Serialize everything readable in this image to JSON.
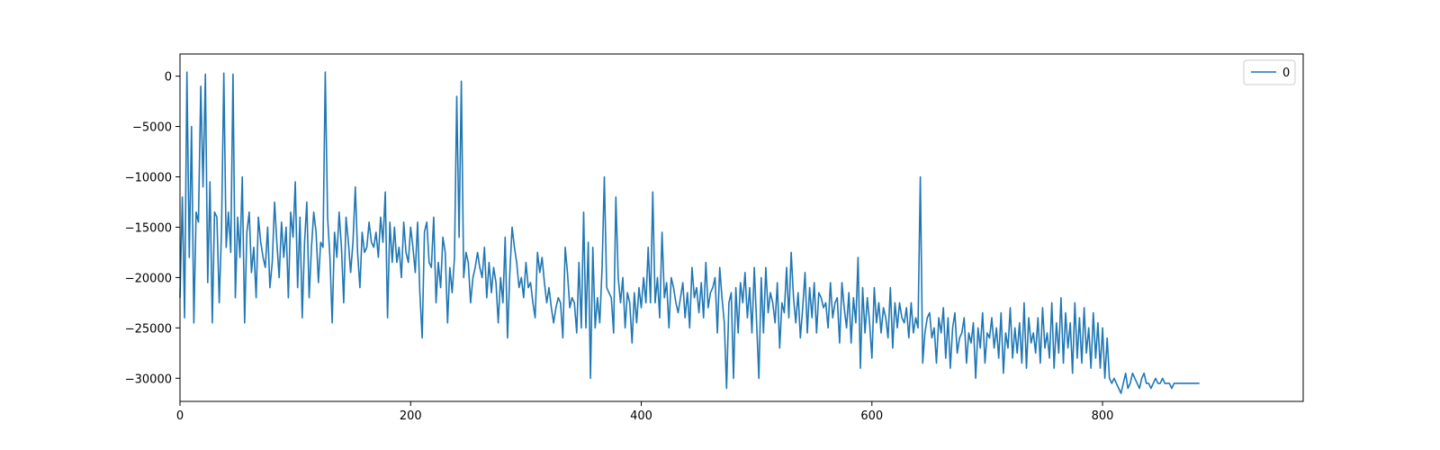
{
  "chart_data": {
    "type": "line",
    "title": "",
    "xlabel": "",
    "ylabel": "",
    "xlim": [
      0,
      974
    ],
    "ylim": [
      -32300,
      2200
    ],
    "x_ticks": [
      0,
      200,
      400,
      600,
      800
    ],
    "y_ticks": [
      0,
      -5000,
      -10000,
      -15000,
      -20000,
      -25000,
      -30000
    ],
    "grid": false,
    "legend": {
      "position": "top-right",
      "entries": [
        "0"
      ]
    },
    "series": [
      {
        "name": "0",
        "color": "#1f77b4",
        "x_start": 0,
        "x_step": 2,
        "values": [
          -22000,
          -12000,
          -24000,
          400,
          -18000,
          -5000,
          -24500,
          -13500,
          -14500,
          -1000,
          -11000,
          200,
          -20500,
          -10500,
          -24500,
          -13500,
          -14000,
          -22500,
          -15500,
          300,
          -17000,
          -13500,
          -17500,
          200,
          -22000,
          -14000,
          -18000,
          -10000,
          -24500,
          -15500,
          -13500,
          -19500,
          -17000,
          -22000,
          -14000,
          -16500,
          -18000,
          -19000,
          -15000,
          -21000,
          -18500,
          -12500,
          -16500,
          -20000,
          -14500,
          -18000,
          -15000,
          -22000,
          -13500,
          -16000,
          -10500,
          -21000,
          -14000,
          -24000,
          -16500,
          -12500,
          -22000,
          -17000,
          -13500,
          -15500,
          -20500,
          -16500,
          -17000,
          400,
          -14000,
          -18000,
          -24500,
          -15500,
          -18000,
          -13500,
          -17000,
          -22500,
          -14000,
          -16500,
          -19500,
          -16500,
          -11000,
          -17500,
          -21000,
          -15500,
          -17500,
          -17000,
          -14500,
          -16500,
          -17000,
          -15500,
          -18000,
          -14000,
          -16500,
          -11500,
          -24000,
          -14500,
          -18500,
          -15000,
          -18500,
          -17000,
          -20000,
          -14500,
          -17500,
          -18500,
          -15000,
          -17000,
          -19500,
          -14500,
          -21500,
          -26000,
          -15500,
          -14500,
          -18500,
          -19000,
          -14000,
          -22500,
          -18500,
          -21000,
          -16000,
          -17500,
          -24500,
          -19000,
          -21500,
          -18000,
          -2000,
          -16000,
          -500,
          -20000,
          -17500,
          -18500,
          -22500,
          -20000,
          -19000,
          -17500,
          -19000,
          -20000,
          -17000,
          -22000,
          -18500,
          -21500,
          -19000,
          -20500,
          -24500,
          -20000,
          -22500,
          -16000,
          -26000,
          -19500,
          -15000,
          -17000,
          -18500,
          -21000,
          -20000,
          -22000,
          -18500,
          -21000,
          -20500,
          -22500,
          -24000,
          -17500,
          -19500,
          -18000,
          -20500,
          -22500,
          -21000,
          -23000,
          -24500,
          -23000,
          -22000,
          -22500,
          -26000,
          -17000,
          -19500,
          -23000,
          -22000,
          -22500,
          -25500,
          -18500,
          -25000,
          -13500,
          -25000,
          -16500,
          -30000,
          -17000,
          -25000,
          -22000,
          -24500,
          -19000,
          -10000,
          -21000,
          -21500,
          -22000,
          -25500,
          -12000,
          -20000,
          -22500,
          -20000,
          -25000,
          -21500,
          -22500,
          -26500,
          -21500,
          -24500,
          -21000,
          -23000,
          -20000,
          -22500,
          -17000,
          -22500,
          -11500,
          -22500,
          -20000,
          -24000,
          -15500,
          -22000,
          -20500,
          -25000,
          -20000,
          -21000,
          -22500,
          -23500,
          -22000,
          -20500,
          -24000,
          -21500,
          -25000,
          -19000,
          -22000,
          -21000,
          -23500,
          -20500,
          -24000,
          -18500,
          -23000,
          -21500,
          -21000,
          -20000,
          -25500,
          -19000,
          -22000,
          -24500,
          -31000,
          -22500,
          -21500,
          -30000,
          -21000,
          -25500,
          -20500,
          -22500,
          -19500,
          -24000,
          -21000,
          -25500,
          -19000,
          -24500,
          -30000,
          -20000,
          -25500,
          -19000,
          -23500,
          -21500,
          -22500,
          -24500,
          -20500,
          -27000,
          -22500,
          -23500,
          -19000,
          -24000,
          -17500,
          -22000,
          -24500,
          -21500,
          -26000,
          -23000,
          -19500,
          -25500,
          -21000,
          -24000,
          -20500,
          -25500,
          -21500,
          -22000,
          -23000,
          -22500,
          -25000,
          -20500,
          -24000,
          -22500,
          -22000,
          -26500,
          -20500,
          -23000,
          -25000,
          -21500,
          -26500,
          -22000,
          -24500,
          -18000,
          -29000,
          -21000,
          -25500,
          -22000,
          -24500,
          -28000,
          -21000,
          -24500,
          -22500,
          -25500,
          -23000,
          -24000,
          -26000,
          -21000,
          -27000,
          -22500,
          -25000,
          -22500,
          -24000,
          -24500,
          -23000,
          -26000,
          -22500,
          -25500,
          -24000,
          -25000,
          -10000,
          -28500,
          -25500,
          -24000,
          -23500,
          -26000,
          -25000,
          -28500,
          -24000,
          -25500,
          -23000,
          -28000,
          -24000,
          -29000,
          -25000,
          -23500,
          -27500,
          -26000,
          -25500,
          -24000,
          -28500,
          -25500,
          -26500,
          -24500,
          -30000,
          -25000,
          -27000,
          -23500,
          -28500,
          -25500,
          -26000,
          -24000,
          -27000,
          -25000,
          -28000,
          -23500,
          -29500,
          -25500,
          -27000,
          -23000,
          -28000,
          -25000,
          -27500,
          -24500,
          -28500,
          -22500,
          -29000,
          -24000,
          -26500,
          -25500,
          -27500,
          -24000,
          -28500,
          -23000,
          -27000,
          -25500,
          -28000,
          -22500,
          -29000,
          -24500,
          -27500,
          -22000,
          -28500,
          -23500,
          -27000,
          -24500,
          -29500,
          -22500,
          -28000,
          -24000,
          -28500,
          -23000,
          -27500,
          -25000,
          -29000,
          -23500,
          -28000,
          -24500,
          -29000,
          -25000,
          -30000,
          -26000,
          -30000,
          -30500,
          -30000,
          -30500,
          -31000,
          -31500,
          -30500,
          -29500,
          -31000,
          -30500,
          -29500,
          -30000,
          -30500,
          -31000,
          -30000,
          -29500,
          -30500,
          -30500,
          -31000,
          -30500,
          -30000,
          -30500,
          -30500,
          -30000,
          -30500,
          -30500,
          -30500,
          -31000,
          -30500,
          -30500,
          -30500,
          -30500,
          -30500,
          -30500,
          -30500,
          -30500,
          -30500,
          -30500,
          -30500,
          -30500
        ]
      }
    ]
  }
}
